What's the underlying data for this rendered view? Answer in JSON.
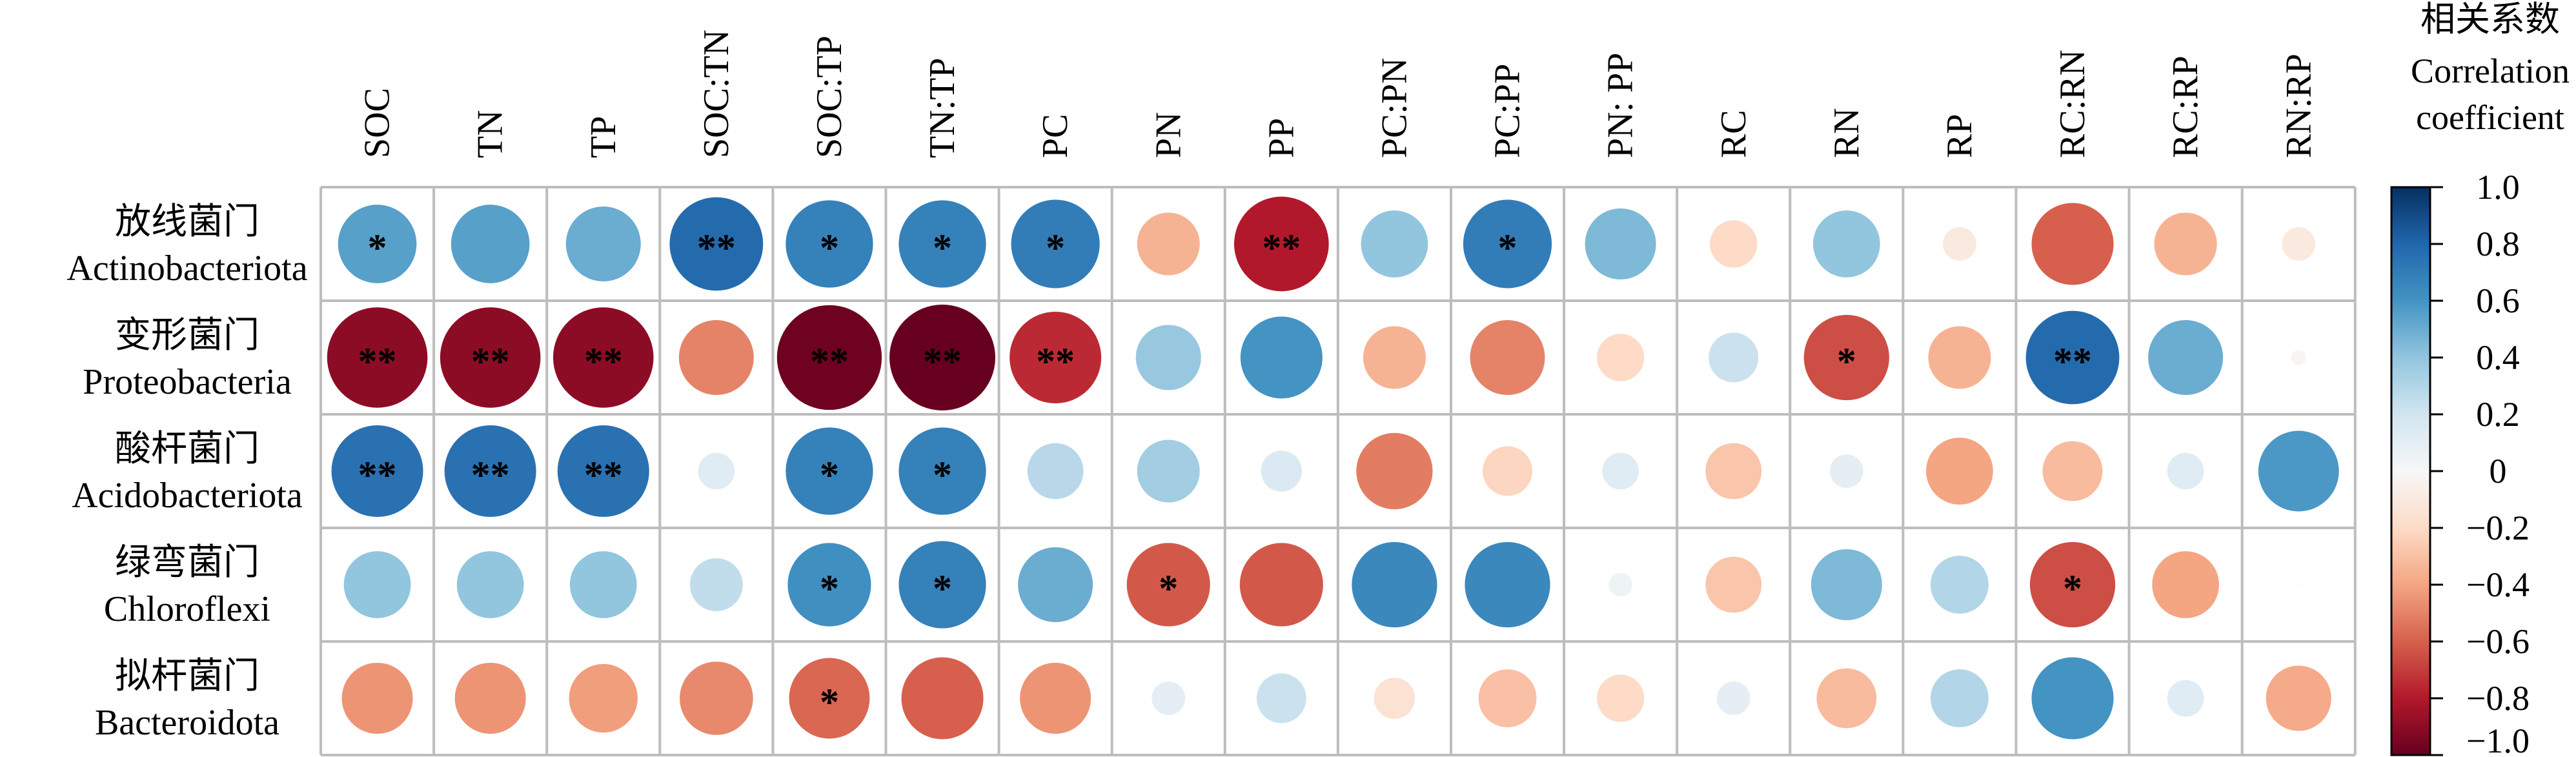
{
  "chart_data": {
    "type": "heatmap",
    "columns": [
      "SOC",
      "TN",
      "TP",
      "SOC:TN",
      "SOC:TP",
      "TN:TP",
      "PC",
      "PN",
      "PP",
      "PC:PN",
      "PC:PP",
      "PN: PP",
      "RC",
      "RN",
      "RP",
      "RC:RN",
      "RC:RP",
      "RN:RP"
    ],
    "rows": [
      {
        "zh": "放线菌门",
        "en": "Actinobacteriota"
      },
      {
        "zh": "变形菌门",
        "en": "Proteobacteria"
      },
      {
        "zh": "酸杆菌门",
        "en": "Acidobacteriota"
      },
      {
        "zh": "绿弯菌门",
        "en": "Chloroflexi"
      },
      {
        "zh": "拟杆菌门",
        "en": "Bacteroidota"
      }
    ],
    "values": [
      [
        0.55,
        0.55,
        0.5,
        0.78,
        0.68,
        0.68,
        0.7,
        -0.35,
        -0.8,
        0.4,
        0.7,
        0.45,
        -0.2,
        0.4,
        -0.1,
        -0.6,
        -0.35,
        -0.1
      ],
      [
        -0.9,
        -0.9,
        -0.9,
        -0.5,
        -0.98,
        -1.0,
        -0.75,
        0.38,
        0.6,
        -0.35,
        -0.5,
        -0.2,
        0.22,
        -0.65,
        -0.35,
        0.78,
        0.5,
        -0.02
      ],
      [
        0.75,
        0.75,
        0.75,
        0.12,
        0.68,
        0.68,
        0.28,
        0.35,
        0.15,
        -0.52,
        -0.22,
        0.12,
        -0.28,
        0.1,
        -0.4,
        -0.32,
        0.12,
        0.58
      ],
      [
        0.4,
        0.4,
        0.4,
        0.25,
        0.62,
        0.68,
        0.5,
        -0.62,
        -0.62,
        0.65,
        0.65,
        0.05,
        -0.28,
        0.45,
        0.3,
        -0.65,
        -0.4,
        0.0
      ],
      [
        -0.45,
        -0.45,
        -0.42,
        -0.48,
        -0.58,
        -0.6,
        -0.45,
        0.1,
        0.22,
        -0.15,
        -0.3,
        -0.2,
        0.1,
        -0.32,
        0.3,
        0.6,
        0.12,
        -0.38
      ]
    ],
    "significance": [
      [
        "*",
        "",
        "",
        "**",
        "*",
        "*",
        "*",
        "",
        "**",
        "",
        "*",
        "",
        "",
        "",
        "",
        "",
        "",
        ""
      ],
      [
        "**",
        "**",
        "**",
        "",
        "**",
        "**",
        "**",
        "",
        "",
        "",
        "",
        "",
        "",
        "*",
        "",
        "**",
        "",
        ""
      ],
      [
        "**",
        "**",
        "**",
        "",
        "*",
        "*",
        "",
        "",
        "",
        "",
        "",
        "",
        "",
        "",
        "",
        "",
        "",
        ""
      ],
      [
        "",
        "",
        "",
        "",
        "*",
        "*",
        "",
        "*",
        "",
        "",
        "",
        "",
        "",
        "",
        "",
        "*",
        "",
        ""
      ],
      [
        "",
        "",
        "",
        "",
        "*",
        "",
        "",
        "",
        "",
        "",
        "",
        "",
        "",
        "",
        "",
        "",
        "",
        ""
      ]
    ],
    "legend": {
      "title_zh": "相关系数",
      "title_en_1": "Correlation",
      "title_en_2": "coefficient",
      "ticks": [
        "1.0",
        "0.8",
        "0.6",
        "0.4",
        "0.2",
        "0",
        "−0.2",
        "−0.4",
        "−0.6",
        "−0.8",
        "−1.0"
      ],
      "range": [
        -1.0,
        1.0
      ],
      "placement": "right"
    },
    "colors": {
      "negative_end": "#67001f",
      "positive_end": "#053061",
      "grid": "#bdbdbd"
    }
  }
}
